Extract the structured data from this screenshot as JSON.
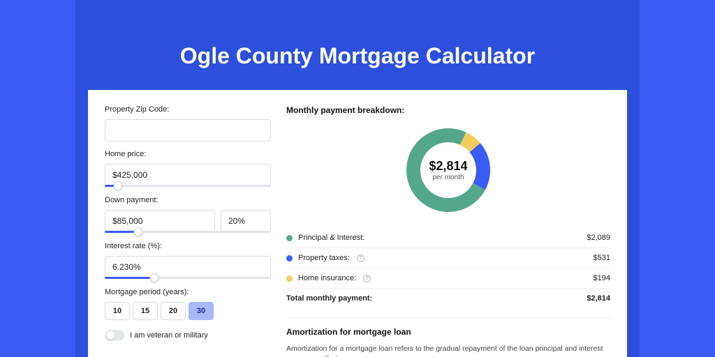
{
  "hero": {
    "title": "Ogle County Mortgage Calculator"
  },
  "form": {
    "zip": {
      "label": "Property Zip Code:",
      "value": ""
    },
    "price": {
      "label": "Home price:",
      "value": "$425,000",
      "slider_pct": 8
    },
    "down": {
      "label": "Down payment:",
      "value": "$85,000",
      "pct": "20%",
      "slider_pct": 20
    },
    "rate": {
      "label": "Interest rate (%):",
      "value": "6.230%",
      "slider_pct": 30
    },
    "period": {
      "label": "Mortgage period (years):",
      "options": [
        "10",
        "15",
        "20",
        "30"
      ],
      "selected": "30"
    },
    "veteran": {
      "label": "I am veteran or military",
      "on": false
    }
  },
  "breakdown": {
    "title": "Monthly payment breakdown:",
    "amount": "$2,814",
    "sub": "per month",
    "items": [
      {
        "label": "Principal & Interest:",
        "value": "$2,089",
        "num": 2089,
        "color": "#55a78b",
        "info": false
      },
      {
        "label": "Property taxes:",
        "value": "$531",
        "num": 531,
        "color": "#3a5cf4",
        "info": true
      },
      {
        "label": "Home insurance:",
        "value": "$194",
        "num": 194,
        "color": "#f2cd5c",
        "info": true
      }
    ],
    "total": {
      "label": "Total monthly payment:",
      "value": "$2,814"
    },
    "donut": {
      "stroke_width": 20,
      "radius": 50,
      "bg": "#ffffff"
    }
  },
  "amort": {
    "title": "Amortization for mortgage loan",
    "body": "Amortization for a mortgage loan refers to the gradual repayment of the loan principal and interest over a specified"
  },
  "colors": {
    "page_bg": "#3a5cf4",
    "banner_bg": "#2c4fdc",
    "card_bg": "#ffffff",
    "border": "#d9dde3"
  }
}
